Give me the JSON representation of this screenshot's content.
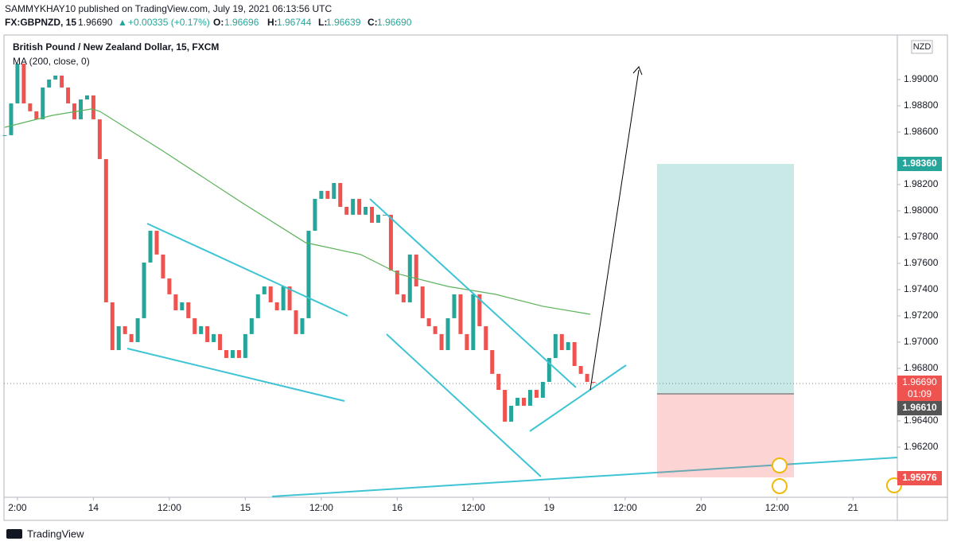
{
  "header": {
    "published": "SAMMYKHAY10 published on TradingView.com, July 19, 2021 06:13:56 UTC",
    "symbol": "FX:GBPNZD, 15",
    "price": "1.96690",
    "change": "+0.00335 (+0.17%)",
    "ohlc": [
      {
        "k": "O:",
        "v": "1.96696"
      },
      {
        "k": "H:",
        "v": "1.96744"
      },
      {
        "k": "L:",
        "v": "1.96639"
      },
      {
        "k": "C:",
        "v": "1.96690"
      }
    ]
  },
  "chart_data": {
    "type": "candlestick",
    "title": "British Pound / New Zealand Dollar, 15, FXCM",
    "currency": "NZD",
    "xlim": [
      0,
      141
    ],
    "ylim": [
      1.95818,
      1.99333
    ],
    "yticks": [
      {
        "value": 1.99,
        "label": "1.99000"
      },
      {
        "value": 1.988,
        "label": "1.98800"
      },
      {
        "value": 1.986,
        "label": "1.98600"
      },
      {
        "value": 1.982,
        "label": "1.98200"
      },
      {
        "value": 1.98,
        "label": "1.98000"
      },
      {
        "value": 1.978,
        "label": "1.97800"
      },
      {
        "value": 1.976,
        "label": "1.97600"
      },
      {
        "value": 1.974,
        "label": "1.97400"
      },
      {
        "value": 1.972,
        "label": "1.97200"
      },
      {
        "value": 1.97,
        "label": "1.97000"
      },
      {
        "value": 1.968,
        "label": "1.96800"
      },
      {
        "value": 1.964,
        "label": "1.96400"
      },
      {
        "value": 1.962,
        "label": "1.96200"
      }
    ],
    "xticks": [
      {
        "value": 2,
        "label": "2:00"
      },
      {
        "value": 14,
        "label": "14"
      },
      {
        "value": 26,
        "label": "12:00"
      },
      {
        "value": 38,
        "label": "15"
      },
      {
        "value": 50,
        "label": "12:00"
      },
      {
        "value": 62,
        "label": "16"
      },
      {
        "value": 74,
        "label": "12:00"
      },
      {
        "value": 86,
        "label": "19"
      },
      {
        "value": 98,
        "label": "12:00"
      },
      {
        "value": 110,
        "label": "20"
      },
      {
        "value": 122,
        "label": "12:00"
      },
      {
        "value": 134,
        "label": "21"
      }
    ],
    "series": [
      {
        "name": "GBPNZD",
        "up_color": "#26a69a",
        "down_color": "#ef5350",
        "x": [
          0,
          1,
          2,
          3,
          4,
          5,
          6,
          7,
          8,
          9,
          10,
          11,
          12,
          13,
          14,
          15,
          16,
          17,
          18,
          19,
          20,
          21,
          22,
          23,
          24,
          25,
          26,
          27,
          28,
          29,
          30,
          31,
          32,
          33,
          34,
          35,
          36,
          37,
          38,
          39,
          40,
          41,
          42,
          43,
          44,
          45,
          46,
          47,
          48,
          49,
          50,
          51,
          52,
          53,
          54,
          55,
          56,
          57,
          58,
          59,
          60,
          61,
          62,
          63,
          64,
          65,
          66,
          67,
          68,
          69,
          70,
          71,
          72,
          73,
          74,
          75,
          76,
          77,
          78,
          79,
          80,
          81,
          82,
          83,
          84,
          85,
          86,
          87,
          88,
          89,
          90,
          91,
          92,
          93
        ],
        "values": [
          1.98576,
          1.98818,
          1.99121,
          1.98818,
          1.98758,
          1.98697,
          1.98939,
          1.99,
          1.9903,
          1.98939,
          1.98818,
          1.98697,
          1.98848,
          1.98879,
          1.98697,
          1.98394,
          1.97303,
          1.96939,
          1.97121,
          1.97061,
          1.97,
          1.97182,
          1.97606,
          1.97848,
          1.97667,
          1.97485,
          1.97364,
          1.97242,
          1.97303,
          1.97182,
          1.97061,
          1.97121,
          1.97,
          1.97061,
          1.96939,
          1.96879,
          1.96939,
          1.96879,
          1.97061,
          1.97182,
          1.97364,
          1.97424,
          1.97303,
          1.97242,
          1.97424,
          1.97242,
          1.97061,
          1.97182,
          1.97848,
          1.98091,
          1.98152,
          1.98091,
          1.98212,
          1.9803,
          1.9797,
          1.98091,
          1.9797,
          1.9803,
          1.97909,
          1.9797,
          1.9797,
          1.97545,
          1.97364,
          1.97303,
          1.97667,
          1.97424,
          1.97182,
          1.97121,
          1.97061,
          1.96939,
          1.97182,
          1.97364,
          1.97061,
          1.96939,
          1.97364,
          1.97121,
          1.96939,
          1.96758,
          1.96636,
          1.96394,
          1.96515,
          1.96576,
          1.96515,
          1.96636,
          1.96576,
          1.96697,
          1.96879,
          1.97061,
          1.96939,
          1.97,
          1.96818,
          1.96758,
          1.96697,
          1.9669
        ]
      },
      {
        "name": "MA (200, close, 0)",
        "color": "#5bb35b",
        "x": [
          0,
          7.5,
          13.75,
          15,
          25,
          37.5,
          47.5,
          56.25,
          62.5,
          70,
          77.5,
          85,
          92.5
        ],
        "values": [
          1.98636,
          1.98727,
          1.98776,
          1.98758,
          1.98455,
          1.98061,
          1.97758,
          1.97667,
          1.97515,
          1.97424,
          1.97364,
          1.97273,
          1.97212
        ]
      }
    ],
    "price_tags": {
      "target": "1.98360",
      "last": "1.96690",
      "countdown": "01:09",
      "entry": "1.96610",
      "stop": "1.95976"
    }
  },
  "footer": {
    "brand": "TradingView"
  }
}
